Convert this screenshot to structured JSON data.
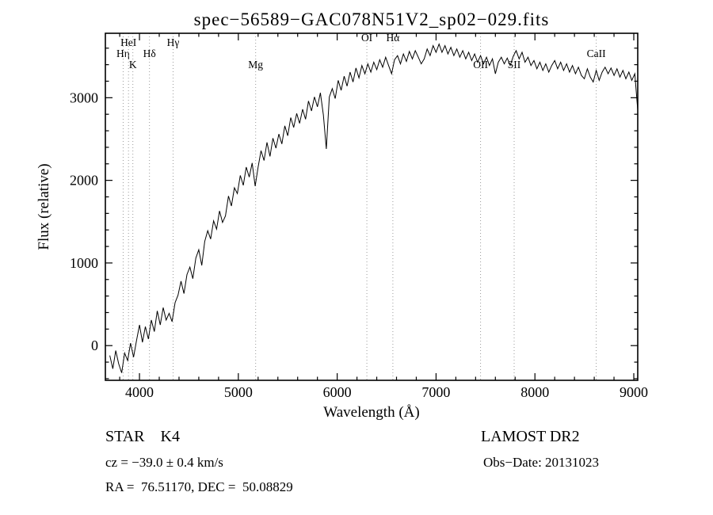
{
  "title": "spec−56589−GAC078N51V2_sp02−029.fits",
  "annotations": {
    "object_class": "STAR    K4",
    "survey": "LAMOST DR2",
    "cz": "cz = −39.0 ± 0.4 km/s",
    "obs_date": "Obs−Date: 20131023",
    "radec": "RA =  76.51170, DEC =  50.08829"
  },
  "chart_data": {
    "type": "line",
    "title": "spec−56589−GAC078N51V2_sp02−029.fits",
    "xlabel": "Wavelength (Å)",
    "ylabel": "Flux (relative)",
    "xlim": [
      3655,
      9040
    ],
    "ylim": [
      -420,
      3780
    ],
    "xticks": [
      4000,
      5000,
      6000,
      7000,
      8000,
      9000
    ],
    "yticks": [
      0,
      1000,
      2000,
      3000
    ],
    "x_minor_step": 200,
    "y_minor_step": 200,
    "grid": false,
    "legend": "none",
    "line_color": "#000000",
    "marker_line_color": "#9a9a9a",
    "spectral_lines": [
      {
        "label": "Hη",
        "wavelength": 3835,
        "row": 2
      },
      {
        "label": "HeI",
        "wavelength": 3889,
        "row": 1
      },
      {
        "label": "K",
        "wavelength": 3933,
        "row": 3
      },
      {
        "label": "Hδ",
        "wavelength": 4101,
        "row": 2
      },
      {
        "label": "Hγ",
        "wavelength": 4340,
        "row": 1
      },
      {
        "label": "Mg",
        "wavelength": 5175,
        "row": 3
      },
      {
        "label": "OI",
        "wavelength": 6300,
        "row": 0
      },
      {
        "label": "Hα",
        "wavelength": 6563,
        "row": 0
      },
      {
        "label": "OII",
        "wavelength": 7450,
        "row": 3
      },
      {
        "label": "SII",
        "wavelength": 7790,
        "row": 3
      },
      {
        "label": "CaII",
        "wavelength": 8620,
        "row": 2
      }
    ],
    "x_start": 3700,
    "x_step": 30,
    "flux": [
      -120,
      -280,
      -60,
      -220,
      -330,
      -90,
      -180,
      30,
      -140,
      60,
      250,
      40,
      230,
      80,
      310,
      170,
      420,
      250,
      460,
      310,
      390,
      290,
      520,
      610,
      780,
      630,
      860,
      950,
      810,
      1060,
      1160,
      970,
      1260,
      1390,
      1290,
      1510,
      1410,
      1630,
      1490,
      1570,
      1810,
      1690,
      1910,
      1840,
      2060,
      1940,
      2160,
      2040,
      2210,
      1930,
      2160,
      2360,
      2240,
      2460,
      2290,
      2510,
      2390,
      2560,
      2440,
      2660,
      2540,
      2760,
      2640,
      2810,
      2690,
      2860,
      2740,
      2960,
      2840,
      3010,
      2890,
      3060,
      2790,
      2380,
      3010,
      3110,
      2990,
      3210,
      3090,
      3260,
      3140,
      3310,
      3190,
      3360,
      3240,
      3390,
      3290,
      3410,
      3310,
      3430,
      3340,
      3460,
      3370,
      3490,
      3390,
      3290,
      3460,
      3510,
      3410,
      3530,
      3440,
      3560,
      3470,
      3570,
      3490,
      3410,
      3470,
      3590,
      3510,
      3630,
      3550,
      3650,
      3550,
      3630,
      3530,
      3610,
      3510,
      3590,
      3490,
      3570,
      3470,
      3550,
      3450,
      3530,
      3430,
      3510,
      3410,
      3490,
      3390,
      3470,
      3290,
      3430,
      3490,
      3410,
      3480,
      3390,
      3500,
      3570,
      3470,
      3550,
      3430,
      3490,
      3390,
      3450,
      3350,
      3430,
      3330,
      3410,
      3310,
      3390,
      3450,
      3350,
      3430,
      3330,
      3410,
      3310,
      3390,
      3290,
      3370,
      3270,
      3230,
      3350,
      3250,
      3190,
      3330,
      3210,
      3310,
      3370,
      3290,
      3360,
      3270,
      3350,
      3250,
      3330,
      3230,
      3310,
      3210,
      3290,
      2850
    ]
  }
}
